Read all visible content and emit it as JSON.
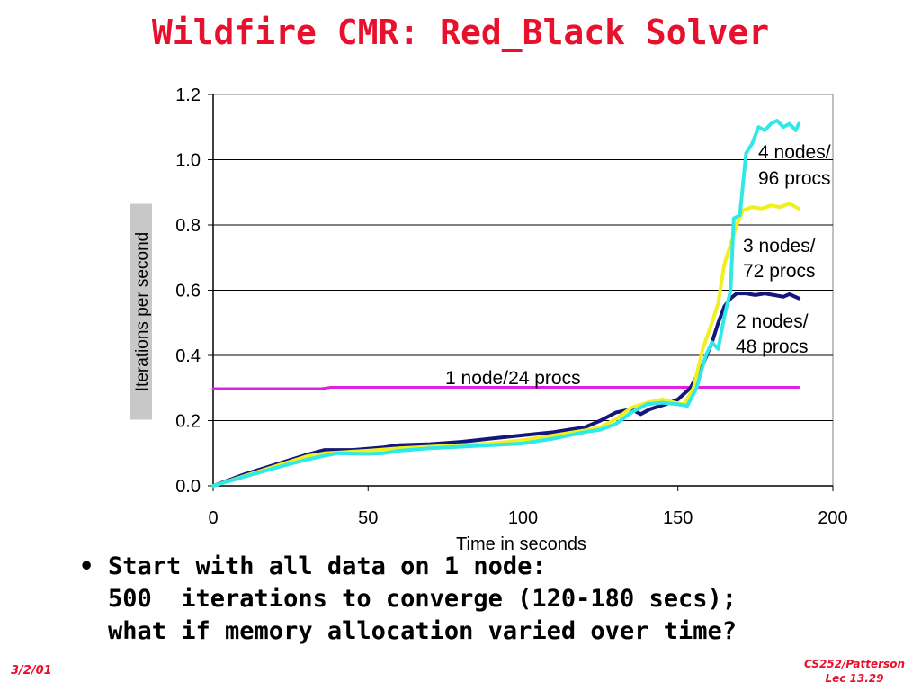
{
  "slide": {
    "title": "Wildfire CMR: Red_Black Solver",
    "bullet_marker": "•",
    "bullet_lines": [
      "Start with all data on 1 node:",
      "500  iterations to converge (120-180 secs);",
      "what if memory allocation varied over time?"
    ],
    "footer_left": "3/2/01",
    "footer_right_line1": "CS252/Patterson",
    "footer_right_line2": "Lec 13.29"
  },
  "colors": {
    "title": "#e8112d",
    "one_node": "#e020e0",
    "two_nodes": "#14167a",
    "three_nodes": "#f0f020",
    "four_nodes": "#30e8e8"
  },
  "chart_data": {
    "type": "line",
    "xlabel": "Time in seconds",
    "ylabel": "Iterations per second",
    "xlim": [
      0,
      200
    ],
    "ylim": [
      0,
      1.2
    ],
    "x_ticks": [
      "0",
      "50",
      "100",
      "150",
      "200"
    ],
    "y_ticks": [
      "0.0",
      "0.2",
      "0.4",
      "0.6",
      "0.8",
      "1.0",
      "1.2"
    ],
    "grid": "horizontal",
    "series": [
      {
        "name": "1 node/24 procs",
        "label_lines": [
          "1 node/24 procs"
        ],
        "color": "#e020e0",
        "points": [
          [
            0,
            0.298
          ],
          [
            35,
            0.298
          ],
          [
            38,
            0.302
          ],
          [
            100,
            0.302
          ],
          [
            150,
            0.302
          ],
          [
            189,
            0.302
          ]
        ]
      },
      {
        "name": "2 nodes/48 procs",
        "label_lines": [
          "2 nodes/",
          "48 procs"
        ],
        "color": "#14167a",
        "points": [
          [
            0,
            0
          ],
          [
            10,
            0.035
          ],
          [
            20,
            0.065
          ],
          [
            30,
            0.095
          ],
          [
            36,
            0.11
          ],
          [
            45,
            0.11
          ],
          [
            55,
            0.118
          ],
          [
            60,
            0.125
          ],
          [
            70,
            0.128
          ],
          [
            80,
            0.135
          ],
          [
            90,
            0.145
          ],
          [
            100,
            0.155
          ],
          [
            110,
            0.165
          ],
          [
            120,
            0.18
          ],
          [
            125,
            0.2
          ],
          [
            130,
            0.225
          ],
          [
            135,
            0.235
          ],
          [
            138,
            0.22
          ],
          [
            141,
            0.235
          ],
          [
            146,
            0.25
          ],
          [
            150,
            0.265
          ],
          [
            154,
            0.3
          ],
          [
            158,
            0.37
          ],
          [
            161,
            0.44
          ],
          [
            163,
            0.5
          ],
          [
            165,
            0.55
          ],
          [
            167,
            0.575
          ],
          [
            169,
            0.59
          ],
          [
            172,
            0.59
          ],
          [
            175,
            0.585
          ],
          [
            178,
            0.59
          ],
          [
            181,
            0.585
          ],
          [
            184,
            0.58
          ],
          [
            186,
            0.588
          ],
          [
            189,
            0.575
          ]
        ]
      },
      {
        "name": "3 nodes/72 procs",
        "label_lines": [
          "3 nodes/",
          "72 procs"
        ],
        "color": "#f0f020",
        "points": [
          [
            0,
            0
          ],
          [
            10,
            0.03
          ],
          [
            20,
            0.06
          ],
          [
            30,
            0.09
          ],
          [
            36,
            0.1
          ],
          [
            45,
            0.105
          ],
          [
            50,
            0.108
          ],
          [
            60,
            0.115
          ],
          [
            70,
            0.12
          ],
          [
            80,
            0.125
          ],
          [
            90,
            0.13
          ],
          [
            100,
            0.14
          ],
          [
            110,
            0.155
          ],
          [
            120,
            0.17
          ],
          [
            125,
            0.18
          ],
          [
            130,
            0.205
          ],
          [
            135,
            0.24
          ],
          [
            140,
            0.255
          ],
          [
            145,
            0.265
          ],
          [
            149,
            0.255
          ],
          [
            152,
            0.25
          ],
          [
            155,
            0.3
          ],
          [
            158,
            0.42
          ],
          [
            161,
            0.5
          ],
          [
            163,
            0.56
          ],
          [
            165,
            0.68
          ],
          [
            167,
            0.74
          ],
          [
            169,
            0.8
          ],
          [
            171,
            0.845
          ],
          [
            174,
            0.855
          ],
          [
            177,
            0.85
          ],
          [
            180,
            0.86
          ],
          [
            183,
            0.855
          ],
          [
            186,
            0.865
          ],
          [
            189,
            0.85
          ]
        ]
      },
      {
        "name": "4 nodes/96 procs",
        "label_lines": [
          "4 nodes/",
          "96 procs"
        ],
        "color": "#30e8e8",
        "points": [
          [
            0,
            0
          ],
          [
            10,
            0.028
          ],
          [
            20,
            0.055
          ],
          [
            30,
            0.08
          ],
          [
            36,
            0.092
          ],
          [
            40,
            0.1
          ],
          [
            50,
            0.098
          ],
          [
            55,
            0.1
          ],
          [
            60,
            0.108
          ],
          [
            70,
            0.115
          ],
          [
            80,
            0.12
          ],
          [
            90,
            0.125
          ],
          [
            100,
            0.13
          ],
          [
            110,
            0.145
          ],
          [
            120,
            0.165
          ],
          [
            125,
            0.172
          ],
          [
            130,
            0.19
          ],
          [
            135,
            0.225
          ],
          [
            140,
            0.25
          ],
          [
            145,
            0.255
          ],
          [
            150,
            0.25
          ],
          [
            153,
            0.245
          ],
          [
            156,
            0.3
          ],
          [
            159,
            0.4
          ],
          [
            161,
            0.44
          ],
          [
            163,
            0.42
          ],
          [
            165,
            0.52
          ],
          [
            167,
            0.6
          ],
          [
            168,
            0.82
          ],
          [
            170,
            0.83
          ],
          [
            172,
            1.02
          ],
          [
            174,
            1.05
          ],
          [
            176,
            1.1
          ],
          [
            178,
            1.09
          ],
          [
            180,
            1.11
          ],
          [
            182,
            1.12
          ],
          [
            184,
            1.1
          ],
          [
            186,
            1.11
          ],
          [
            188,
            1.09
          ],
          [
            189,
            1.11
          ]
        ]
      }
    ]
  }
}
